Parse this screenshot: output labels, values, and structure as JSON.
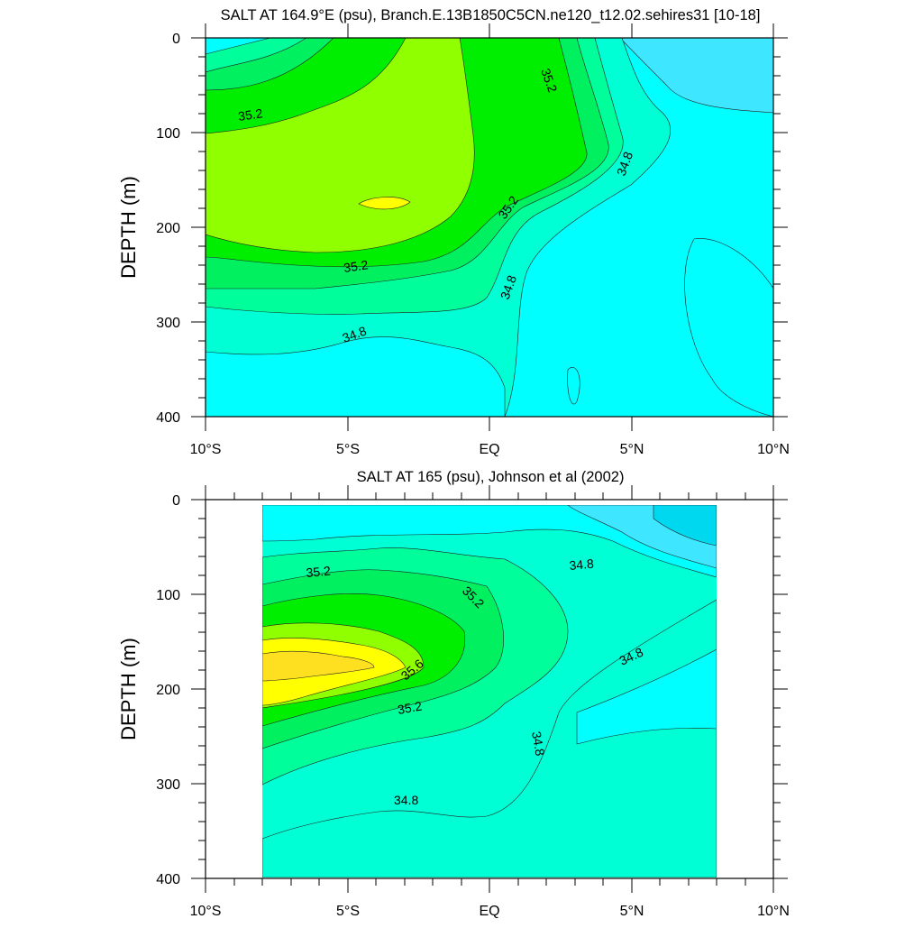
{
  "chart_data": [
    {
      "type": "heatmap",
      "title": "SALT AT 164.9°E (psu), Branch.E.13B1850C5CN.ne120_t12.02.sehires31 [10-18]",
      "xlabel": "",
      "ylabel": "DEPTH (m)",
      "xlim": [
        -10,
        10
      ],
      "ylim": [
        0,
        400
      ],
      "y_reversed": true,
      "x_tick_labels": [
        "10°S",
        "5°S",
        "EQ",
        "5°N",
        "10°N"
      ],
      "y_tick_labels": [
        "0",
        "100",
        "200",
        "300",
        "400"
      ],
      "data_extent_x": [
        -10,
        10
      ],
      "contour_labels": [
        "35.2",
        "35.2",
        "35.2",
        "35.2",
        "34.8",
        "34.8",
        "34.8"
      ],
      "max_salinity_region": {
        "lat": -4,
        "depth": 175,
        "note": "yellow core"
      },
      "fill_colors": {
        "34.6": "#3ee6ff",
        "34.7": "#00ffff",
        "34.8": "#00ffd5",
        "35.0": "#00ff9a",
        "35.2": "#00f060",
        "35.3": "#00ee00",
        "35.4": "#90ff00",
        "35.6": "#ffff00"
      }
    },
    {
      "type": "heatmap",
      "title": "SALT AT 165 (psu), Johnson et al (2002)",
      "xlabel": "",
      "ylabel": "DEPTH (m)",
      "xlim": [
        -10,
        10
      ],
      "ylim": [
        0,
        400
      ],
      "y_reversed": true,
      "x_tick_labels": [
        "10°S",
        "5°S",
        "EQ",
        "5°N",
        "10°N"
      ],
      "y_tick_labels": [
        "0",
        "100",
        "200",
        "300",
        "400"
      ],
      "data_extent_x": [
        -8,
        8
      ],
      "contour_labels": [
        "35.2",
        "35.2",
        "35.6",
        "35.2",
        "34.8",
        "34.8",
        "34.8",
        "34.8"
      ],
      "max_salinity_region": {
        "lat": -7,
        "depth": 170,
        "note": "yellow/orange core"
      },
      "fill_colors": {
        "34.5": "#00d8f0",
        "34.6": "#3ee6ff",
        "34.7": "#00ffff",
        "34.8": "#00ffd5",
        "35.0": "#00ff9a",
        "35.2": "#00f060",
        "35.3": "#00ee00",
        "35.4": "#90ff00",
        "35.6": "#ffff00",
        "35.7": "#ffe020"
      }
    }
  ]
}
